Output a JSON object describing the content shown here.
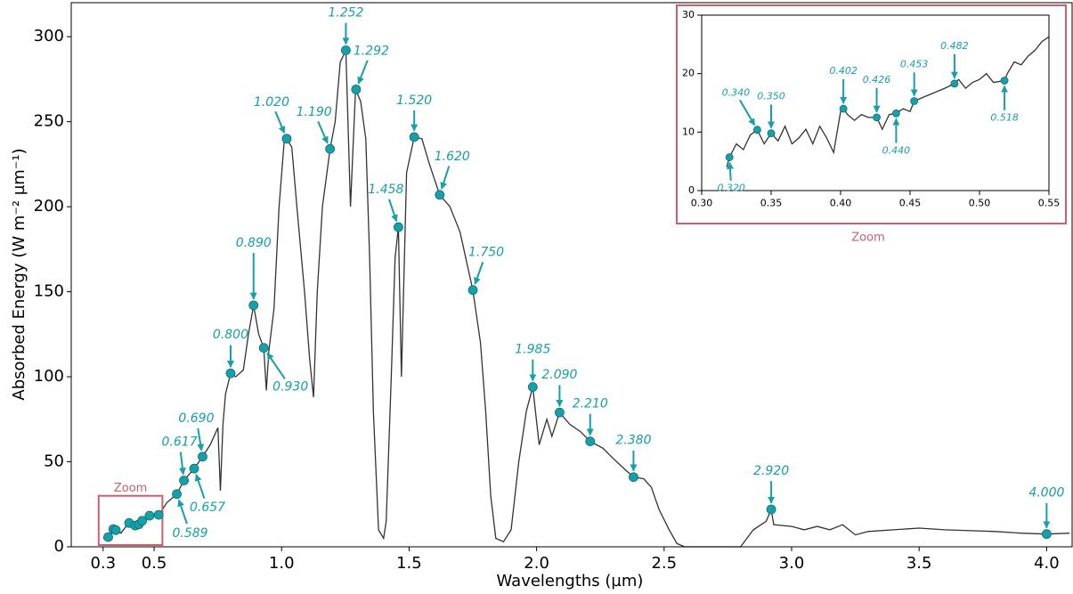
{
  "chart_data": [
    {
      "type": "line",
      "xlabel": "Wavelengths (µm)",
      "ylabel": "Absorbed Energy (W m⁻² µm⁻¹)",
      "zoom_box_label": "Zoom",
      "color": "#333333",
      "marker_color": "#17a0a8",
      "xlim": [
        0.175,
        4.1
      ],
      "ylim": [
        0,
        320
      ],
      "xticks": [
        0.3,
        0.5,
        {
          "value": 1.0,
          "label": "1.0"
        },
        1.5,
        {
          "value": 2.0,
          "label": "2.0"
        },
        2.5,
        {
          "value": 3.0,
          "label": "3.0"
        },
        3.5,
        {
          "value": 4.0,
          "label": "4.0"
        }
      ],
      "yticks": [
        0,
        50,
        100,
        150,
        200,
        250,
        300
      ],
      "x": [
        0.3,
        0.32,
        0.34,
        0.35,
        0.37,
        0.4,
        0.43,
        0.45,
        0.48,
        0.52,
        0.55,
        0.589,
        0.617,
        0.657,
        0.69,
        0.72,
        0.75,
        0.76,
        0.77,
        0.78,
        0.8,
        0.82,
        0.85,
        0.87,
        0.89,
        0.91,
        0.93,
        0.94,
        0.95,
        0.97,
        0.99,
        1.01,
        1.02,
        1.04,
        1.06,
        1.09,
        1.11,
        1.125,
        1.14,
        1.16,
        1.19,
        1.21,
        1.23,
        1.252,
        1.27,
        1.29,
        1.31,
        1.33,
        1.345,
        1.36,
        1.38,
        1.4,
        1.41,
        1.43,
        1.445,
        1.458,
        1.47,
        1.49,
        1.52,
        1.55,
        1.58,
        1.62,
        1.66,
        1.7,
        1.75,
        1.78,
        1.8,
        1.82,
        1.84,
        1.87,
        1.9,
        1.93,
        1.96,
        1.985,
        2.01,
        2.04,
        2.06,
        2.09,
        2.13,
        2.17,
        2.21,
        2.26,
        2.3,
        2.35,
        2.38,
        2.42,
        2.45,
        2.48,
        2.52,
        2.55,
        2.58,
        2.8,
        2.85,
        2.9,
        2.92,
        2.93,
        3.0,
        3.05,
        3.1,
        3.15,
        3.2,
        3.25,
        3.3,
        3.4,
        3.5,
        3.6,
        3.7,
        3.8,
        3.9,
        4.0,
        4.09
      ],
      "values": [
        5,
        6,
        10,
        10,
        8,
        14,
        12,
        15,
        18,
        19,
        26,
        31,
        39,
        46,
        53,
        60,
        70,
        33,
        72,
        90,
        102,
        100,
        104,
        125,
        142,
        125,
        117,
        92,
        115,
        140,
        200,
        238,
        240,
        235,
        200,
        150,
        110,
        88,
        150,
        200,
        234,
        250,
        285,
        292,
        200,
        269,
        262,
        240,
        170,
        80,
        10,
        5,
        15,
        100,
        170,
        188,
        100,
        220,
        241,
        240,
        225,
        207,
        200,
        185,
        151,
        120,
        80,
        30,
        5,
        3,
        10,
        50,
        80,
        94,
        60,
        75,
        65,
        79,
        72,
        68,
        62,
        58,
        52,
        45,
        41,
        40,
        35,
        22,
        10,
        2,
        0,
        0,
        10,
        15,
        22,
        13,
        12,
        10,
        12,
        10,
        13,
        7,
        9,
        10,
        11,
        10,
        9.5,
        9,
        8,
        7.5,
        8
      ],
      "marker_x": [
        0.589,
        0.617,
        0.657,
        0.69,
        0.8,
        0.89,
        0.93,
        1.02,
        1.19,
        1.252,
        1.292,
        1.458,
        1.52,
        1.62,
        1.75,
        1.985,
        2.09,
        2.21,
        2.38,
        2.92,
        4.0
      ],
      "marker_values": [
        31,
        39,
        46,
        53,
        102,
        142,
        117,
        240,
        234,
        292,
        269,
        188,
        241,
        207,
        151,
        94,
        79,
        62,
        41,
        22,
        7.5
      ],
      "marker_labels": [
        "0.589",
        "0.617",
        "0.657",
        "0.690",
        "0.800",
        "0.890",
        "0.930",
        "1.020",
        "1.190",
        "1.252",
        "1.292",
        "1.458",
        "1.520",
        "1.620",
        "1.750",
        "1.985",
        "2.090",
        "2.210",
        "2.380",
        "2.920",
        "4.000"
      ]
    },
    {
      "type": "line",
      "label": "Zoom",
      "color": "#333333",
      "marker_color": "#17a0a8",
      "frame_color": "#cc5f70",
      "xlim": [
        0.3,
        0.55
      ],
      "ylim": [
        0,
        30
      ],
      "xticks": [
        {
          "value": 0.3,
          "label": "0.30"
        },
        0.35,
        {
          "value": 0.4,
          "label": "0.40"
        },
        0.45,
        {
          "value": 0.5,
          "label": "0.50"
        },
        0.55
      ],
      "yticks": [
        0,
        10,
        20,
        30
      ],
      "x": [
        0.318,
        0.32,
        0.325,
        0.33,
        0.335,
        0.34,
        0.345,
        0.35,
        0.355,
        0.36,
        0.365,
        0.37,
        0.375,
        0.38,
        0.385,
        0.39,
        0.395,
        0.4,
        0.402,
        0.405,
        0.41,
        0.415,
        0.42,
        0.426,
        0.43,
        0.435,
        0.44,
        0.445,
        0.45,
        0.453,
        0.46,
        0.465,
        0.47,
        0.475,
        0.482,
        0.485,
        0.49,
        0.495,
        0.5,
        0.505,
        0.51,
        0.518,
        0.52,
        0.525,
        0.53,
        0.535,
        0.54,
        0.545,
        0.55
      ],
      "values": [
        4,
        5.7,
        8,
        7,
        9.5,
        10.4,
        8,
        9.8,
        8.5,
        11,
        8,
        9,
        10.5,
        8,
        11,
        9,
        6.5,
        13.5,
        14,
        13,
        12,
        13,
        12.5,
        12.5,
        10.5,
        13,
        13.2,
        14,
        13.5,
        15.3,
        16,
        16.5,
        17,
        17.5,
        18.3,
        19,
        17.5,
        18.5,
        19,
        20,
        18.5,
        18.8,
        20,
        22,
        21.5,
        23,
        24,
        25.5,
        26.3
      ],
      "marker_x": [
        0.32,
        0.34,
        0.35,
        0.402,
        0.426,
        0.44,
        0.453,
        0.482,
        0.518
      ],
      "marker_values": [
        5.7,
        10.4,
        9.8,
        14,
        12.5,
        13.2,
        15.3,
        18.3,
        18.8
      ],
      "marker_labels": [
        "0.320",
        "0.340",
        "0.350",
        "0.402",
        "0.426",
        "0.440",
        "0.453",
        "0.482",
        "0.518"
      ]
    }
  ]
}
